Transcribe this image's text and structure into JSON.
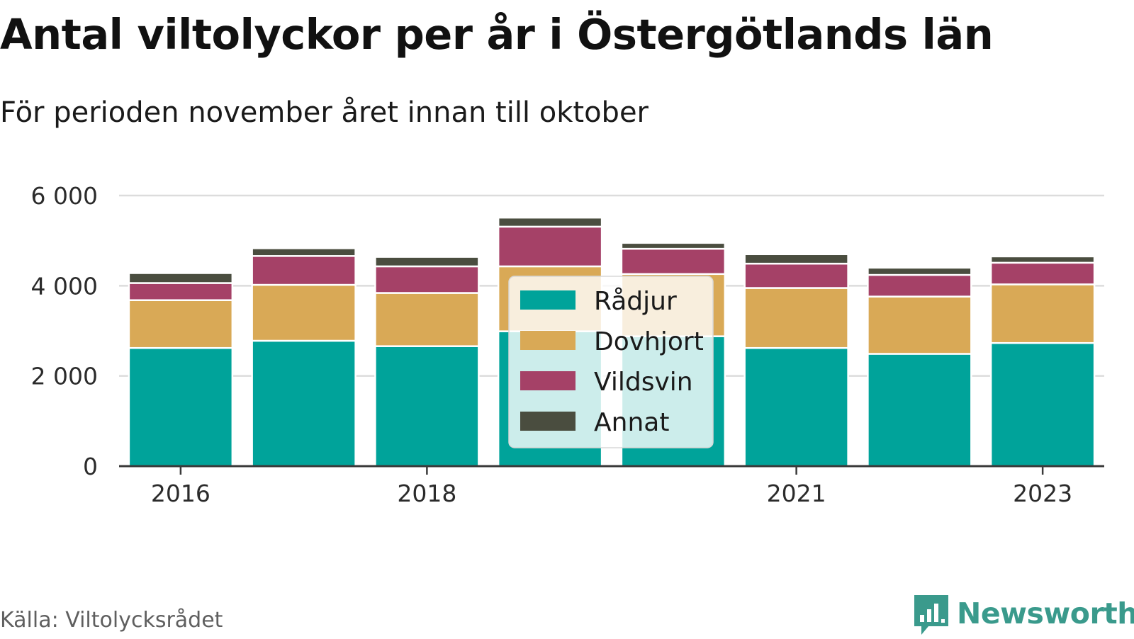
{
  "title": "Antal viltolyckor per år i Östergötlands län",
  "subtitle": "För perioden november året innan till oktober",
  "source": "Källa: Viltolycksrådet",
  "brand": {
    "name": "Newsworthy",
    "icon": "bar-chart-speech-bubble-icon",
    "color": "#3a9a8c"
  },
  "chart_data": {
    "type": "bar",
    "stacked": true,
    "categories": [
      "2016",
      "2017",
      "2018",
      "2019",
      "2020",
      "2021",
      "2022",
      "2023"
    ],
    "x_tick_labels": [
      {
        "category": "2016",
        "label": "2016"
      },
      {
        "category": "2018",
        "label": "2018"
      },
      {
        "category": "2021",
        "label": "2021"
      },
      {
        "category": "2023",
        "label": "2023"
      }
    ],
    "series": [
      {
        "name": "Rådjur",
        "color": "#00a39a",
        "values": [
          2620,
          2780,
          2660,
          2990,
          2880,
          2620,
          2490,
          2730
        ]
      },
      {
        "name": "Dovhjort",
        "color": "#d9a956",
        "values": [
          1060,
          1240,
          1180,
          1440,
          1380,
          1330,
          1270,
          1300
        ]
      },
      {
        "name": "Vildsvin",
        "color": "#a54167",
        "values": [
          380,
          640,
          590,
          880,
          560,
          540,
          480,
          480
        ]
      },
      {
        "name": "Annat",
        "color": "#4a4d3f",
        "values": [
          220,
          170,
          210,
          200,
          130,
          210,
          160,
          140
        ]
      }
    ],
    "ylim": [
      0,
      6000
    ],
    "y_ticks": [
      {
        "value": 0,
        "label": "0"
      },
      {
        "value": 2000,
        "label": "2 000"
      },
      {
        "value": 4000,
        "label": "4 000"
      },
      {
        "value": 6000,
        "label": "6 000"
      }
    ],
    "grid": true,
    "legend_position": "center",
    "xlabel": "",
    "ylabel": ""
  }
}
